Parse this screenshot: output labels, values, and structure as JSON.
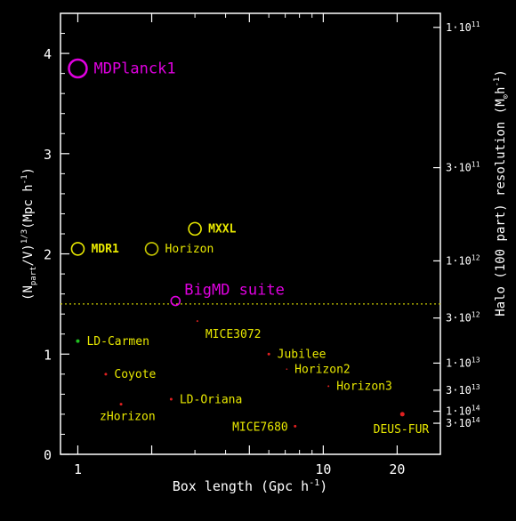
{
  "chart_data": {
    "type": "scatter",
    "xlabel_main": "Box length (Gpc h",
    "xlabel_sup": "-1",
    "xlabel_tail": ")",
    "ylabel_parts": [
      "(N",
      "part",
      "/V)",
      "1/3",
      "(Mpc h",
      "-1",
      ")"
    ],
    "y2label_main": "Halo (100 part)   resolution (M",
    "y2label_sun": "⊙",
    "y2label_tail": "h",
    "y2label_sup": "-1",
    "y2label_close": ")",
    "xscale": "log",
    "xlim": [
      0.85,
      30
    ],
    "ylim": [
      0,
      4.4
    ],
    "xticks": [
      1,
      2,
      5,
      10,
      20
    ],
    "xtick_labels": [
      "1",
      "",
      "",
      "10",
      "20"
    ],
    "yticks": [
      0,
      1,
      2,
      3,
      4
    ],
    "ytick_labels": [
      "0",
      "1",
      "2",
      "3",
      "4"
    ],
    "y2ticks": [
      {
        "y": 4.26,
        "mant": "1·10",
        "exp": "11"
      },
      {
        "y": 2.86,
        "mant": "3·10",
        "exp": "11"
      },
      {
        "y": 1.93,
        "mant": "1·10",
        "exp": "12"
      },
      {
        "y": 1.36,
        "mant": "3·10",
        "exp": "12"
      },
      {
        "y": 0.91,
        "mant": "1·10",
        "exp": "13"
      },
      {
        "y": 0.64,
        "mant": "3·10",
        "exp": "13"
      },
      {
        "y": 0.43,
        "mant": "1·10",
        "exp": "14"
      },
      {
        "y": 0.31,
        "mant": "3·10",
        "exp": "14"
      }
    ],
    "reference_line": {
      "y": 1.5,
      "color": "#c8c800",
      "style": "dotted"
    },
    "points": [
      {
        "name": "MDPlanck1",
        "x": 1.0,
        "y": 3.85,
        "r": 10,
        "color": "#e000e0",
        "label_color": "#e000e0",
        "label_size": "big",
        "label_dir": "right"
      },
      {
        "name": "MDR1",
        "x": 1.0,
        "y": 2.05,
        "r": 7,
        "color": "#e8e800",
        "label_color": "#e8e800",
        "label_size": "mid",
        "label_dir": "right"
      },
      {
        "name": "MXXL",
        "x": 3.0,
        "y": 2.25,
        "r": 7,
        "color": "#e8e800",
        "label_color": "#e8e800",
        "label_size": "mid",
        "label_dir": "right"
      },
      {
        "name": "Horizon",
        "x": 2.0,
        "y": 2.05,
        "r": 7,
        "color": "#c8c800",
        "label_color": "#e8e800",
        "label_size": "small",
        "label_dir": "right"
      },
      {
        "name": "BigMD suite",
        "x": 2.5,
        "y": 1.53,
        "r": 5,
        "color": "#e000e0",
        "label_color": "#e000e0",
        "label_size": "big",
        "label_dir": "upright"
      },
      {
        "name": "MICE3072",
        "x": 3.07,
        "y": 1.33,
        "r": 1,
        "color": "#e02020",
        "label_color": "#e8e800",
        "label_size": "small",
        "label_dir": "below"
      },
      {
        "name": "LD-Carmen",
        "x": 1.0,
        "y": 1.13,
        "r": 2,
        "color": "#20c020",
        "label_color": "#e8e800",
        "label_size": "small",
        "label_dir": "right"
      },
      {
        "name": "Jubilee",
        "x": 6.0,
        "y": 1.0,
        "r": 1.5,
        "color": "#e02020",
        "label_color": "#e8e800",
        "label_size": "small",
        "label_dir": "right"
      },
      {
        "name": "Horizon2",
        "x": 7.1,
        "y": 0.85,
        "r": 0.8,
        "color": "#e02020",
        "label_color": "#e8e800",
        "label_size": "small",
        "label_dir": "right"
      },
      {
        "name": "Coyote",
        "x": 1.3,
        "y": 0.8,
        "r": 1.5,
        "color": "#e02020",
        "label_color": "#e8e800",
        "label_size": "small",
        "label_dir": "right"
      },
      {
        "name": "Horizon3",
        "x": 10.5,
        "y": 0.68,
        "r": 1,
        "color": "#e02020",
        "label_color": "#e8e800",
        "label_size": "small",
        "label_dir": "right"
      },
      {
        "name": "LD-Oriana",
        "x": 2.4,
        "y": 0.55,
        "r": 1.5,
        "color": "#e02020",
        "label_color": "#e8e800",
        "label_size": "small",
        "label_dir": "right"
      },
      {
        "name": "zHorizon",
        "x": 1.5,
        "y": 0.5,
        "r": 1.5,
        "color": "#e02020",
        "label_color": "#e8e800",
        "label_size": "small",
        "label_dir": "belowleft"
      },
      {
        "name": "MICE7680",
        "x": 7.68,
        "y": 0.28,
        "r": 1.5,
        "color": "#e02020",
        "label_color": "#e8e800",
        "label_size": "small",
        "label_dir": "left"
      },
      {
        "name": "DEUS-FUR",
        "x": 21.0,
        "y": 0.4,
        "r": 2.5,
        "color": "#e02020",
        "label_color": "#e8e800",
        "label_size": "small",
        "label_dir": "belowleft"
      }
    ],
    "grid": false,
    "legend": "none"
  }
}
